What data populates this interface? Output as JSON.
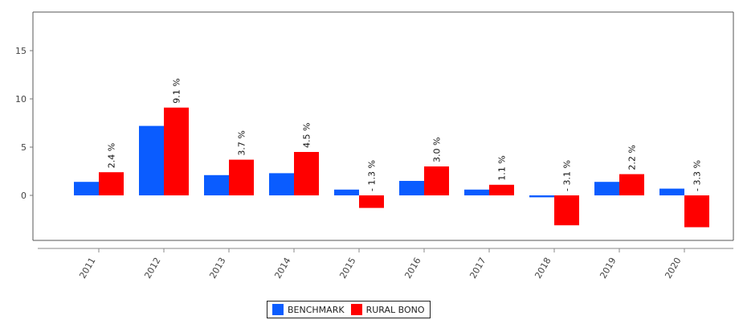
{
  "chart_data": {
    "type": "bar",
    "categories": [
      "2011",
      "2012",
      "2013",
      "2014",
      "2015",
      "2016",
      "2017",
      "2018",
      "2019",
      "2020"
    ],
    "series": [
      {
        "name": "BENCHMARK",
        "color": "#0a5cff",
        "values": [
          1.4,
          7.2,
          2.1,
          2.3,
          0.6,
          1.5,
          0.6,
          -0.2,
          1.4,
          0.7
        ]
      },
      {
        "name": "RURAL BONO",
        "color": "#ff0000",
        "values": [
          2.4,
          9.1,
          3.7,
          4.5,
          -1.3,
          3.0,
          1.1,
          -3.1,
          2.2,
          -3.3
        ],
        "labels": [
          "2.4 %",
          "9.1 %",
          "3.7 %",
          "4.5 %",
          "- 1.3 %",
          "3.0 %",
          "1.1 %",
          "- 3.1 %",
          "2.2 %",
          "- 3.3 %"
        ]
      }
    ],
    "yticks": [
      0,
      5,
      10,
      15
    ],
    "ylim": [
      -4.6,
      19
    ],
    "grid": false,
    "legend_position": "bottom-center"
  }
}
